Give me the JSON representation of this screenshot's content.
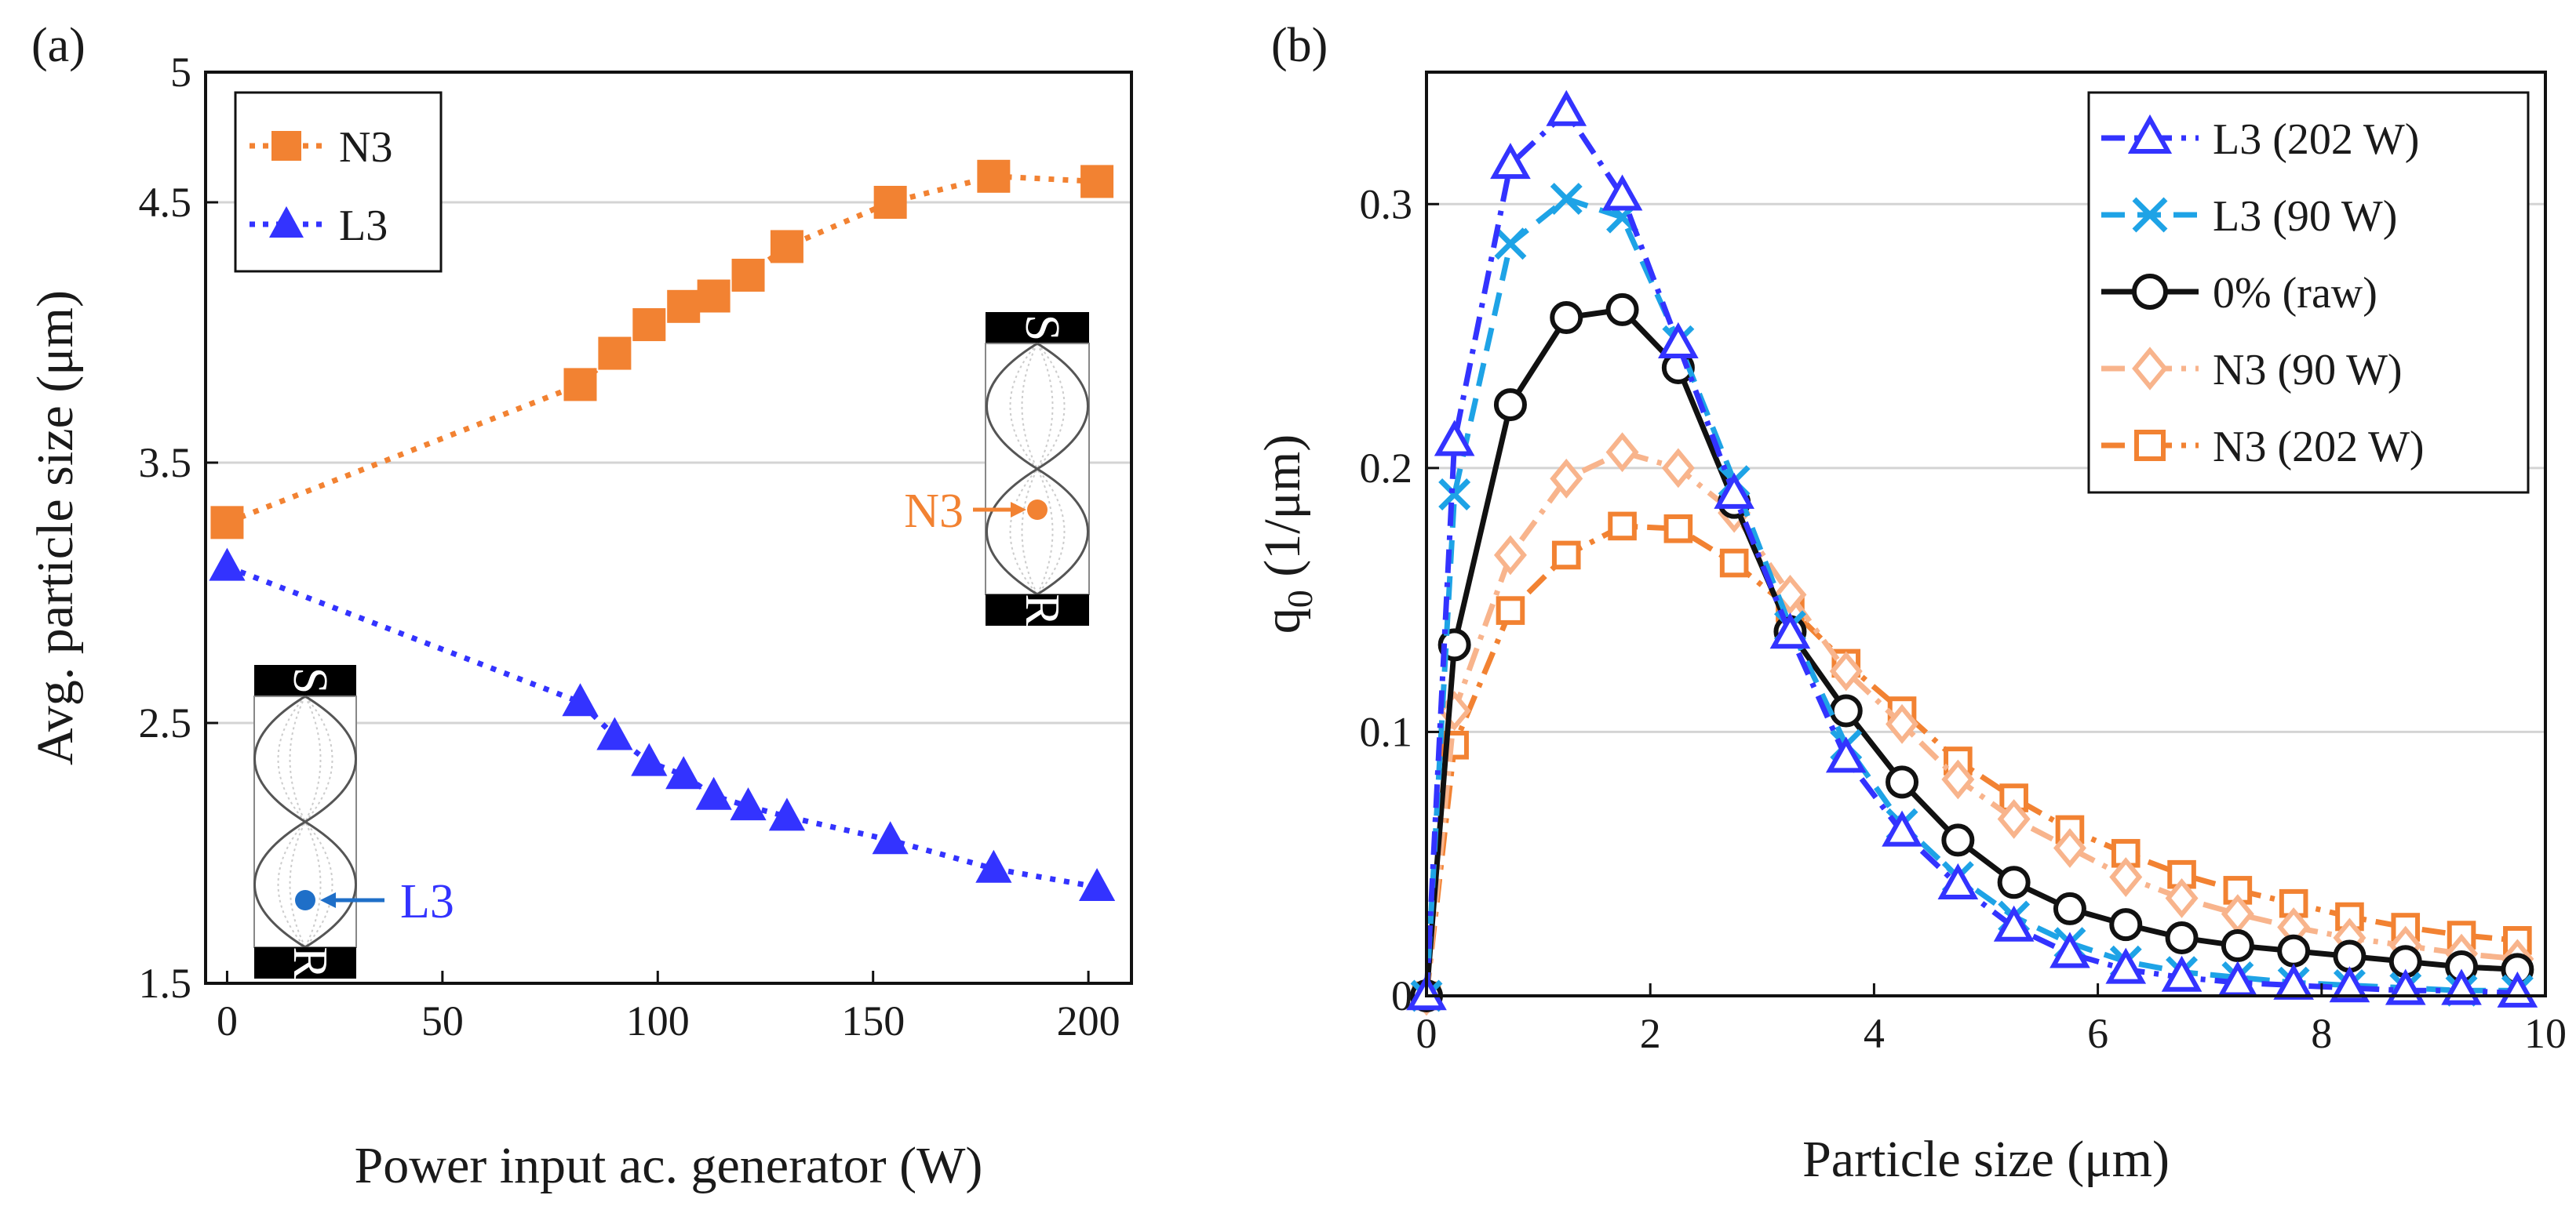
{
  "chart_data": [
    {
      "panel": "(a)",
      "type": "line",
      "xlabel": "Power input ac. generator (W)",
      "ylabel": "Avg. particle size (μm)",
      "xlim": [
        -5,
        210
      ],
      "ylim": [
        1.5,
        5
      ],
      "xticks": [
        0,
        50,
        100,
        150,
        200
      ],
      "yticks": [
        1.5,
        2.5,
        3.5,
        4.5,
        5
      ],
      "ytick_labels": [
        "1.5",
        "2.5",
        "3.5",
        "4.5",
        "5"
      ],
      "grid": "horizontal",
      "legend_position": "top-left",
      "series": [
        {
          "name": "N3",
          "marker": "square",
          "color": "#f28232",
          "linestyle": "dotted",
          "x": [
            0,
            82,
            90,
            98,
            106,
            113,
            121,
            130,
            154,
            178,
            202
          ],
          "y": [
            3.27,
            3.8,
            3.92,
            4.03,
            4.1,
            4.14,
            4.22,
            4.33,
            4.5,
            4.6,
            4.58
          ]
        },
        {
          "name": "L3",
          "marker": "triangle",
          "color": "#3333ff",
          "linestyle": "dotted",
          "x": [
            0,
            82,
            90,
            98,
            106,
            113,
            121,
            130,
            154,
            178,
            202
          ],
          "y": [
            3.1,
            2.58,
            2.45,
            2.35,
            2.3,
            2.22,
            2.18,
            2.14,
            2.05,
            1.94,
            1.87
          ]
        }
      ],
      "insets": [
        {
          "label": "N3",
          "top_plate": "S",
          "bottom_plate": "R",
          "arrow_color": "#f28232"
        },
        {
          "label": "L3",
          "top_plate": "S",
          "bottom_plate": "R",
          "arrow_color": "#1f6fc8"
        }
      ]
    },
    {
      "panel": "(b)",
      "type": "line",
      "xlabel": "Particle size (μm)",
      "ylabel": "q0 (1/μm)",
      "ylabel_main": "q",
      "ylabel_sub": "0",
      "ylabel_unit": " (1/μm)",
      "xlim": [
        0,
        10
      ],
      "ylim": [
        0,
        0.35
      ],
      "xticks": [
        0,
        2,
        4,
        6,
        8,
        10
      ],
      "yticks": [
        0,
        0.1,
        0.2,
        0.3
      ],
      "ytick_labels": [
        "0",
        "0.1",
        "0.2",
        "0.3"
      ],
      "grid": "horizontal",
      "legend_position": "top-right",
      "x": [
        0,
        0.25,
        0.75,
        1.25,
        1.75,
        2.25,
        2.75,
        3.25,
        3.75,
        4.25,
        4.75,
        5.25,
        5.75,
        6.25,
        6.75,
        7.25,
        7.75,
        8.25,
        8.75,
        9.25,
        9.75
      ],
      "series": [
        {
          "name": "L3 (202 W)",
          "marker": "triangle-open",
          "color": "#3333ff",
          "linestyle": "dashdot",
          "values": [
            0,
            0.21,
            0.315,
            0.335,
            0.303,
            0.247,
            0.19,
            0.137,
            0.09,
            0.062,
            0.042,
            0.026,
            0.016,
            0.01,
            0.007,
            0.005,
            0.004,
            0.003,
            0.002,
            0.002,
            0.001
          ]
        },
        {
          "name": "L3 (90 W)",
          "marker": "x",
          "color": "#1ea3e6",
          "linestyle": "dashed",
          "values": [
            0,
            0.19,
            0.285,
            0.302,
            0.295,
            0.248,
            0.195,
            0.14,
            0.095,
            0.065,
            0.045,
            0.03,
            0.02,
            0.013,
            0.009,
            0.007,
            0.005,
            0.004,
            0.003,
            0.002,
            0.002
          ]
        },
        {
          "name": "0% (raw)",
          "marker": "circle-open",
          "color": "#111111",
          "linestyle": "solid",
          "values": [
            0,
            0.133,
            0.224,
            0.257,
            0.26,
            0.238,
            0.187,
            0.138,
            0.108,
            0.081,
            0.059,
            0.043,
            0.033,
            0.027,
            0.022,
            0.019,
            0.017,
            0.015,
            0.013,
            0.011,
            0.01
          ]
        },
        {
          "name": "N3 (90 W)",
          "marker": "diamond-open",
          "color": "#f8b48c",
          "linestyle": "dashdot",
          "values": [
            0,
            0.108,
            0.167,
            0.196,
            0.206,
            0.2,
            0.183,
            0.152,
            0.123,
            0.103,
            0.082,
            0.067,
            0.056,
            0.045,
            0.037,
            0.031,
            0.026,
            0.022,
            0.019,
            0.016,
            0.014
          ]
        },
        {
          "name": "N3 (202 W)",
          "marker": "square-open",
          "color": "#f28232",
          "linestyle": "dashdot",
          "values": [
            0,
            0.095,
            0.146,
            0.167,
            0.178,
            0.177,
            0.164,
            0.147,
            0.126,
            0.108,
            0.089,
            0.075,
            0.063,
            0.054,
            0.046,
            0.04,
            0.035,
            0.03,
            0.026,
            0.023,
            0.021
          ]
        }
      ]
    }
  ]
}
